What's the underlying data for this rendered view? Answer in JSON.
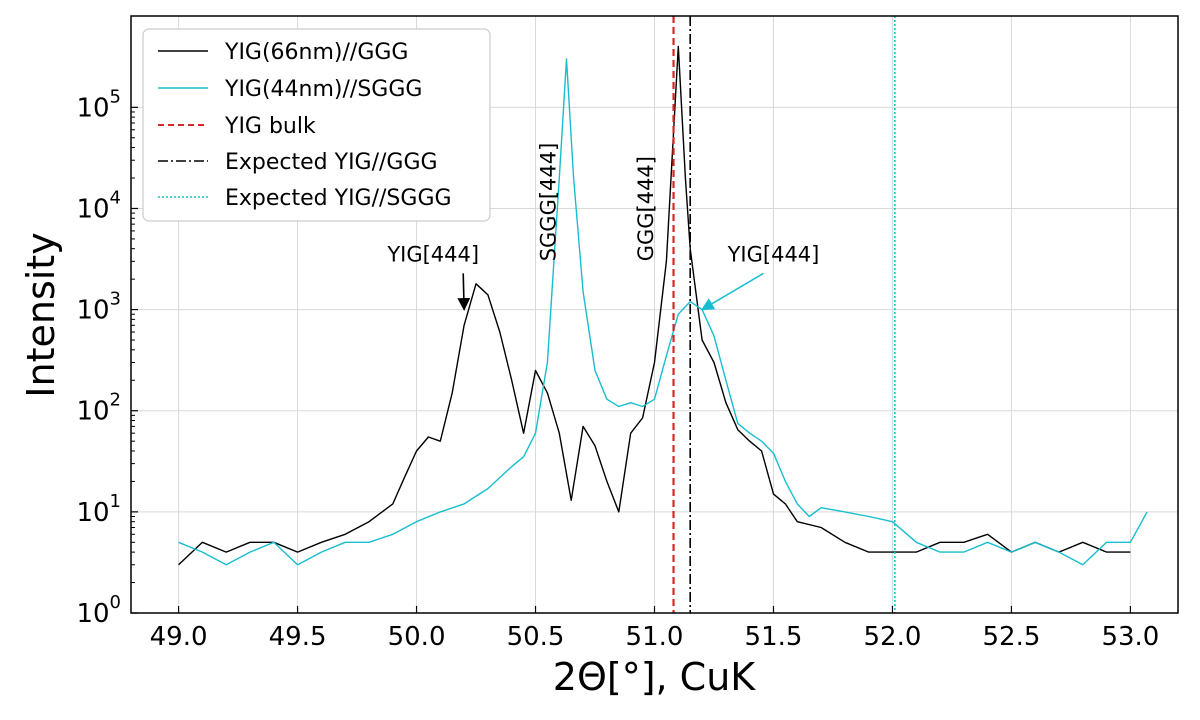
{
  "chart_data": {
    "type": "line",
    "xlabel": "2Θ[°], CuK",
    "ylabel": "Intensity",
    "xlim": [
      48.8,
      53.2
    ],
    "ylim": [
      1,
      800000
    ],
    "yscale": "log",
    "grid": true,
    "legend_position": "top-left",
    "x_ticks": [
      49.0,
      49.5,
      50.0,
      50.5,
      51.0,
      51.5,
      52.0,
      52.5,
      53.0
    ],
    "x_tick_labels": [
      "49.0",
      "49.5",
      "50.0",
      "50.5",
      "51.0",
      "51.5",
      "52.0",
      "52.5",
      "53.0"
    ],
    "y_tick_exponents": [
      0,
      1,
      2,
      3,
      4,
      5
    ],
    "y_tick_base": "10",
    "series": [
      {
        "name": "YIG(66nm)//GGG",
        "color": "#000000",
        "style": "solid",
        "points": [
          [
            49.0,
            3
          ],
          [
            49.1,
            5
          ],
          [
            49.2,
            4
          ],
          [
            49.3,
            5
          ],
          [
            49.4,
            5
          ],
          [
            49.5,
            4
          ],
          [
            49.6,
            5
          ],
          [
            49.7,
            6
          ],
          [
            49.8,
            8
          ],
          [
            49.9,
            12
          ],
          [
            49.95,
            22
          ],
          [
            50.0,
            40
          ],
          [
            50.05,
            55
          ],
          [
            50.1,
            50
          ],
          [
            50.15,
            150
          ],
          [
            50.2,
            700
          ],
          [
            50.25,
            1800
          ],
          [
            50.3,
            1400
          ],
          [
            50.35,
            600
          ],
          [
            50.4,
            200
          ],
          [
            50.45,
            60
          ],
          [
            50.5,
            250
          ],
          [
            50.55,
            150
          ],
          [
            50.6,
            60
          ],
          [
            50.65,
            13
          ],
          [
            50.7,
            70
          ],
          [
            50.75,
            45
          ],
          [
            50.8,
            20
          ],
          [
            50.85,
            10
          ],
          [
            50.9,
            60
          ],
          [
            50.95,
            85
          ],
          [
            51.0,
            300
          ],
          [
            51.05,
            3000
          ],
          [
            51.1,
            400000
          ],
          [
            51.13,
            20000
          ],
          [
            51.15,
            4000
          ],
          [
            51.2,
            500
          ],
          [
            51.25,
            300
          ],
          [
            51.3,
            120
          ],
          [
            51.35,
            65
          ],
          [
            51.4,
            50
          ],
          [
            51.45,
            40
          ],
          [
            51.5,
            15
          ],
          [
            51.55,
            12
          ],
          [
            51.6,
            8
          ],
          [
            51.7,
            7
          ],
          [
            51.8,
            5
          ],
          [
            51.9,
            4
          ],
          [
            52.0,
            4
          ],
          [
            52.1,
            4
          ],
          [
            52.2,
            5
          ],
          [
            52.3,
            5
          ],
          [
            52.4,
            6
          ],
          [
            52.5,
            4
          ],
          [
            52.6,
            5
          ],
          [
            52.7,
            4
          ],
          [
            52.8,
            5
          ],
          [
            52.9,
            4
          ],
          [
            53.0,
            4
          ]
        ]
      },
      {
        "name": "YIG(44nm)//SGGG",
        "color": "#17becf",
        "style": "solid",
        "points": [
          [
            49.0,
            5
          ],
          [
            49.1,
            4
          ],
          [
            49.2,
            3
          ],
          [
            49.3,
            4
          ],
          [
            49.4,
            5
          ],
          [
            49.5,
            3
          ],
          [
            49.6,
            4
          ],
          [
            49.7,
            5
          ],
          [
            49.8,
            5
          ],
          [
            49.9,
            6
          ],
          [
            50.0,
            8
          ],
          [
            50.1,
            10
          ],
          [
            50.2,
            12
          ],
          [
            50.3,
            17
          ],
          [
            50.4,
            28
          ],
          [
            50.45,
            35
          ],
          [
            50.5,
            60
          ],
          [
            50.55,
            300
          ],
          [
            50.6,
            20000
          ],
          [
            50.63,
            300000
          ],
          [
            50.66,
            20000
          ],
          [
            50.7,
            1500
          ],
          [
            50.75,
            250
          ],
          [
            50.8,
            130
          ],
          [
            50.85,
            110
          ],
          [
            50.9,
            120
          ],
          [
            50.95,
            110
          ],
          [
            51.0,
            130
          ],
          [
            51.05,
            350
          ],
          [
            51.1,
            900
          ],
          [
            51.15,
            1200
          ],
          [
            51.2,
            1000
          ],
          [
            51.25,
            550
          ],
          [
            51.3,
            200
          ],
          [
            51.35,
            75
          ],
          [
            51.4,
            60
          ],
          [
            51.45,
            50
          ],
          [
            51.5,
            38
          ],
          [
            51.55,
            20
          ],
          [
            51.6,
            12
          ],
          [
            51.65,
            9
          ],
          [
            51.7,
            11
          ],
          [
            51.8,
            10
          ],
          [
            51.9,
            9
          ],
          [
            52.0,
            8
          ],
          [
            52.1,
            5
          ],
          [
            52.2,
            4
          ],
          [
            52.3,
            4
          ],
          [
            52.4,
            5
          ],
          [
            52.5,
            4
          ],
          [
            52.6,
            5
          ],
          [
            52.7,
            4
          ],
          [
            52.8,
            3
          ],
          [
            52.9,
            5
          ],
          [
            53.0,
            5
          ],
          [
            53.07,
            10
          ]
        ]
      }
    ],
    "vlines": [
      {
        "name": "YIG bulk",
        "x": 51.08,
        "color": "#d62728",
        "style": "dashed"
      },
      {
        "name": "Expected YIG//GGG",
        "x": 51.15,
        "color": "#000000",
        "style": "dashdot"
      },
      {
        "name": "Expected YIG//SGGG",
        "x": 52.01,
        "color": "#17becf",
        "style": "dotted"
      }
    ],
    "annotations": [
      {
        "text": "YIG[444]",
        "x": 50.07,
        "y": 3000,
        "arrow_to": [
          50.2,
          1000
        ],
        "color": "#000000",
        "rotation": 0
      },
      {
        "text": "YIG[444]",
        "x": 51.5,
        "y": 3000,
        "arrow_to": [
          51.2,
          1000
        ],
        "color": "#17becf",
        "rotation": 0
      },
      {
        "text": "SGGG[444]",
        "x": 50.55,
        "y": 3000,
        "color": "#000000",
        "rotation": -90
      },
      {
        "text": "GGG[444]",
        "x": 50.96,
        "y": 3000,
        "color": "#000000",
        "rotation": -90
      }
    ]
  }
}
